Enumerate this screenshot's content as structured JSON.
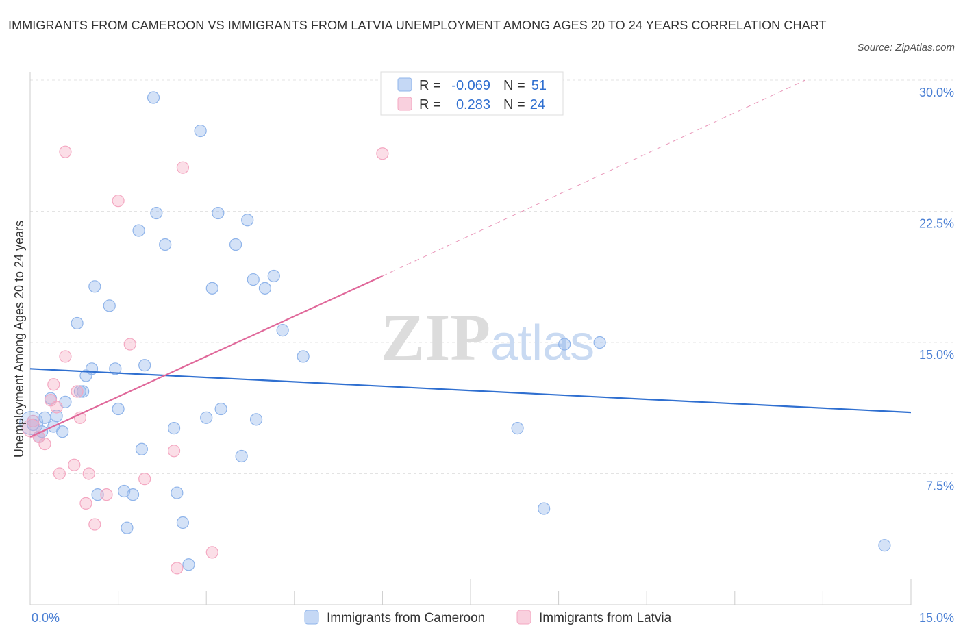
{
  "chart_data": {
    "type": "scatter",
    "title": "IMMIGRANTS FROM CAMEROON VS IMMIGRANTS FROM LATVIA UNEMPLOYMENT AMONG AGES 20 TO 24 YEARS CORRELATION CHART",
    "source": "Source: ZipAtlas.com",
    "xlabel": "",
    "ylabel": "Unemployment Among Ages 20 to 24 years",
    "xlim": [
      0,
      15
    ],
    "ylim": [
      0,
      30
    ],
    "x_tick_labels": [
      "0.0%",
      "15.0%"
    ],
    "y_ticks": [
      7.5,
      15,
      22.5,
      30
    ],
    "y_tick_labels": [
      "7.5%",
      "15.0%",
      "22.5%",
      "30.0%"
    ],
    "watermark": "ZIPatlas",
    "stats": [
      {
        "r_label": "R =",
        "r_value": "-0.069",
        "n_label": "N =",
        "n_value": "51"
      },
      {
        "r_label": "R =",
        "r_value": "0.283",
        "n_label": "N =",
        "n_value": "24"
      }
    ],
    "series": [
      {
        "name": "Immigrants from Cameroon",
        "color": "#8fb4ea",
        "line_color": "#2f6fd0",
        "trend": {
          "x1": 0,
          "y1": 13.5,
          "x2": 15,
          "y2": 11.0
        },
        "points": [
          [
            0.05,
            10.3
          ],
          [
            0.15,
            9.6
          ],
          [
            0.2,
            9.9
          ],
          [
            0.25,
            10.7
          ],
          [
            0.35,
            11.8
          ],
          [
            0.4,
            10.2
          ],
          [
            0.45,
            10.8
          ],
          [
            0.55,
            9.9
          ],
          [
            0.6,
            11.6
          ],
          [
            0.8,
            16.1
          ],
          [
            0.85,
            12.2
          ],
          [
            0.9,
            12.2
          ],
          [
            0.95,
            13.1
          ],
          [
            1.05,
            13.5
          ],
          [
            1.1,
            18.2
          ],
          [
            1.15,
            6.3
          ],
          [
            1.35,
            17.1
          ],
          [
            1.45,
            13.5
          ],
          [
            1.5,
            11.2
          ],
          [
            1.6,
            6.5
          ],
          [
            1.65,
            4.4
          ],
          [
            1.75,
            6.3
          ],
          [
            1.85,
            21.4
          ],
          [
            1.9,
            8.9
          ],
          [
            1.95,
            13.7
          ],
          [
            2.1,
            29.0
          ],
          [
            2.15,
            22.4
          ],
          [
            2.3,
            20.6
          ],
          [
            2.45,
            10.1
          ],
          [
            2.5,
            6.4
          ],
          [
            2.6,
            4.7
          ],
          [
            2.7,
            2.3
          ],
          [
            2.9,
            27.1
          ],
          [
            3.0,
            10.7
          ],
          [
            3.1,
            18.1
          ],
          [
            3.2,
            22.4
          ],
          [
            3.25,
            11.2
          ],
          [
            3.5,
            20.6
          ],
          [
            3.6,
            8.5
          ],
          [
            3.7,
            22.0
          ],
          [
            3.8,
            18.6
          ],
          [
            3.85,
            10.6
          ],
          [
            4.0,
            18.1
          ],
          [
            4.15,
            18.8
          ],
          [
            4.3,
            15.7
          ],
          [
            4.65,
            14.2
          ],
          [
            8.3,
            10.1
          ],
          [
            8.75,
            5.5
          ],
          [
            9.1,
            14.9
          ],
          [
            9.7,
            15.0
          ],
          [
            14.55,
            3.4
          ]
        ]
      },
      {
        "name": "Immigrants from Latvia",
        "color": "#f4a7c1",
        "line_color": "#e0689a",
        "trend": {
          "x1": 0,
          "y1": 9.6,
          "x2": 6.0,
          "y2": 18.8
        },
        "trend_dashed": {
          "x1": 6.0,
          "y1": 18.8,
          "x2": 13.2,
          "y2": 30.0
        },
        "points": [
          [
            0.05,
            10.5
          ],
          [
            0.15,
            9.6
          ],
          [
            0.25,
            9.2
          ],
          [
            0.35,
            11.7
          ],
          [
            0.4,
            12.6
          ],
          [
            0.45,
            11.3
          ],
          [
            0.5,
            7.5
          ],
          [
            0.6,
            14.2
          ],
          [
            0.6,
            25.9
          ],
          [
            0.75,
            8.0
          ],
          [
            0.8,
            12.2
          ],
          [
            0.85,
            10.7
          ],
          [
            0.95,
            5.8
          ],
          [
            1.0,
            7.5
          ],
          [
            1.1,
            4.6
          ],
          [
            1.3,
            6.3
          ],
          [
            1.5,
            23.1
          ],
          [
            1.7,
            14.9
          ],
          [
            1.95,
            7.2
          ],
          [
            2.45,
            8.8
          ],
          [
            2.5,
            2.1
          ],
          [
            2.6,
            25.0
          ],
          [
            3.1,
            3.0
          ],
          [
            6.0,
            25.8
          ]
        ]
      }
    ]
  },
  "legend_swatches": {
    "cameroon_fill": "#c5d8f5",
    "cameroon_stroke": "#8fb4ea",
    "latvia_fill": "#f9d0de",
    "latvia_stroke": "#f4a7c1"
  }
}
